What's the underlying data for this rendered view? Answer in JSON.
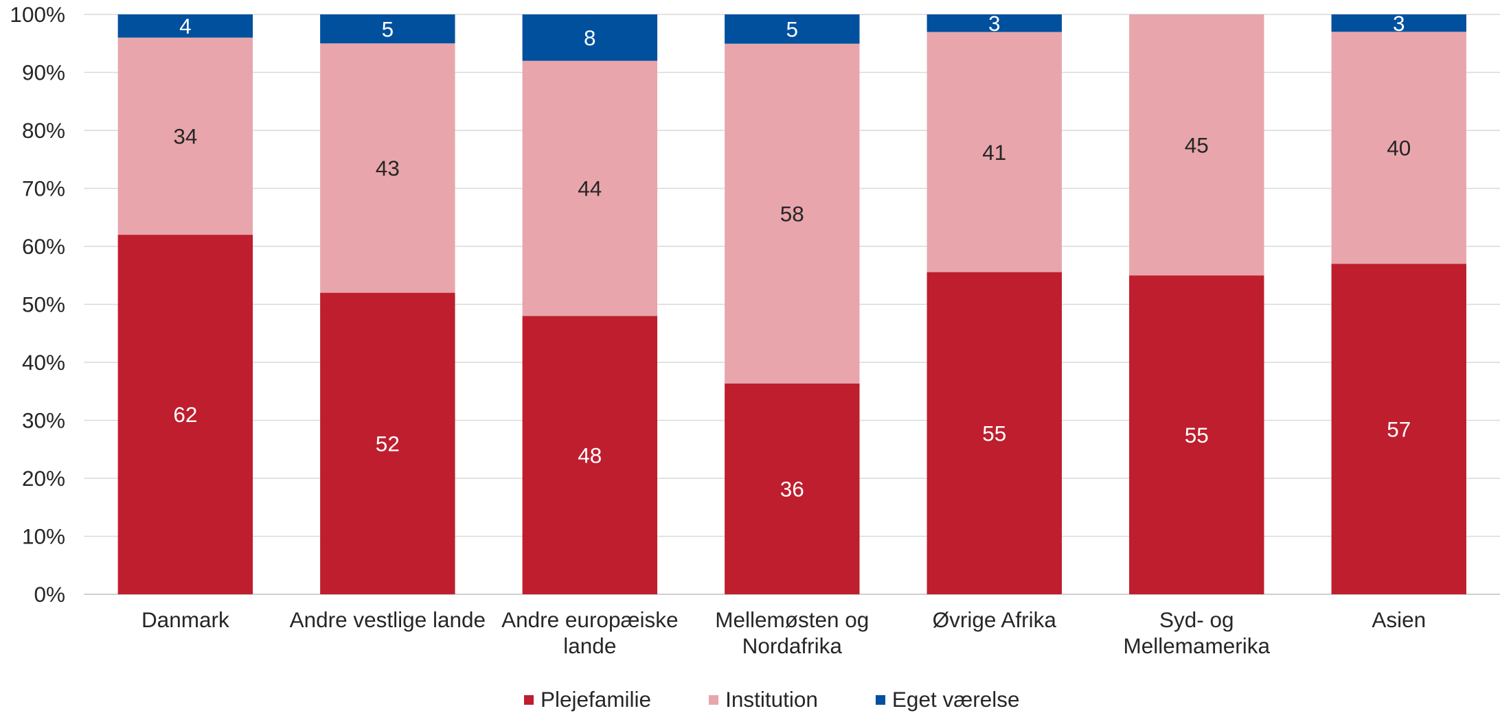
{
  "chart_data": {
    "type": "bar",
    "stacking": "percent",
    "data_labels": true,
    "categories": [
      "Danmark",
      "Andre vestlige lande",
      "Andre europæiske lande",
      "Mellemøsten og Nordafrika",
      "Øvrige Afrika",
      "Syd- og Mellemamerika",
      "Asien"
    ],
    "series": [
      {
        "name": "Plejefamilie",
        "color": "#BE1E2D",
        "label_color": "#FFFFFF",
        "values": [
          62,
          52,
          48,
          36,
          55,
          55,
          57
        ]
      },
      {
        "name": "Institution",
        "color": "#E8A6AC",
        "label_color": "#262626",
        "values": [
          34,
          43,
          44,
          58,
          41,
          45,
          40
        ]
      },
      {
        "name": "Eget værelse",
        "color": "#00509E",
        "label_color": "#FFFFFF",
        "values": [
          4,
          5,
          8,
          5,
          3,
          null,
          3
        ]
      }
    ],
    "y_tick_labels": [
      "0%",
      "10%",
      "20%",
      "30%",
      "40%",
      "50%",
      "60%",
      "70%",
      "80%",
      "90%",
      "100%"
    ],
    "ylim": [
      0,
      100
    ],
    "grid": true,
    "gridline_color": "#D9D9D9",
    "axis_line_color": "#BFBFBF",
    "legend_position": "bottom"
  }
}
